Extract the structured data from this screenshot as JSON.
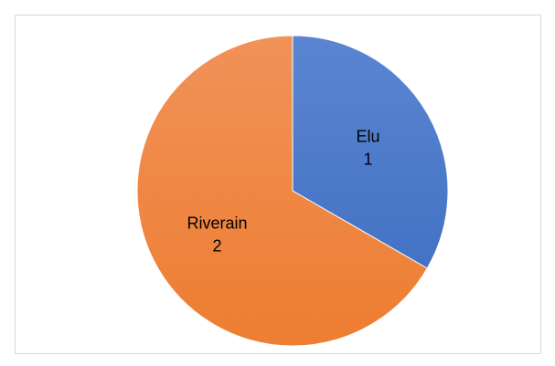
{
  "chart_data": {
    "type": "pie",
    "title": "",
    "slices": [
      {
        "label": "Elu",
        "value": 1,
        "value_label": "1",
        "color": "#4472C4",
        "color_light": "#5A85D1"
      },
      {
        "label": "Riverain",
        "value": 2,
        "value_label": "2",
        "color": "#ED7D31",
        "color_light": "#F19258"
      }
    ],
    "legend": "none",
    "data_labels": "inside, category name and value"
  }
}
